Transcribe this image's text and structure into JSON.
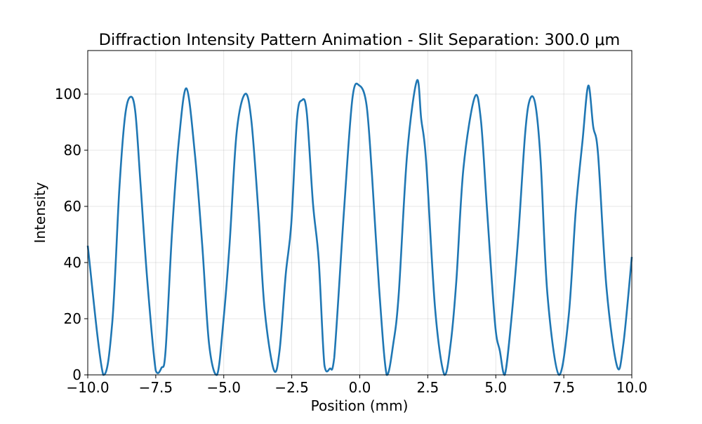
{
  "chart_data": {
    "type": "line",
    "title": "Diffraction Intensity Pattern Animation - Slit Separation: 300.0 μm",
    "xlabel": "Position (mm)",
    "ylabel": "Intensity",
    "xlim": [
      -10,
      10
    ],
    "ylim": [
      0,
      115.5
    ],
    "xticks": [
      -10,
      -7.5,
      -5,
      -2.5,
      0,
      2.5,
      5,
      7.5,
      10
    ],
    "xtick_labels": [
      "−10.0",
      "−7.5",
      "−5.0",
      "−2.5",
      "0.0",
      "2.5",
      "5.0",
      "7.5",
      "10.0"
    ],
    "yticks": [
      0,
      20,
      40,
      60,
      80,
      100
    ],
    "ytick_labels": [
      "0",
      "20",
      "40",
      "60",
      "80",
      "100"
    ],
    "grid": true,
    "line_color": "#1f77b4",
    "series": [
      {
        "x": [
          -10,
          -9.43,
          -9.1,
          -8.84,
          -8.63,
          -8.43,
          -8.25,
          -8.06,
          -7.81,
          -7.5,
          -7.29,
          -7.14,
          -6.9,
          -6.65,
          -6.37,
          -6.06,
          -5.79,
          -5.54,
          -5.25,
          -5.02,
          -4.79,
          -4.53,
          -4.22,
          -3.99,
          -3.73,
          -3.5,
          -3.16,
          -2.95,
          -2.72,
          -2.52,
          -2.31,
          -2.13,
          -1.95,
          -1.72,
          -1.51,
          -1.3,
          -1.1,
          -0.94,
          -0.58,
          -0.27,
          -0.01,
          0.25,
          0.45,
          0.71,
          0.99,
          1.23,
          1.43,
          1.74,
          2.1,
          2.26,
          2.44,
          2.77,
          3.11,
          3.34,
          3.55,
          3.81,
          4.22,
          4.45,
          4.68,
          4.97,
          5.15,
          5.33,
          5.56,
          5.82,
          6.08,
          6.26,
          6.46,
          6.65,
          6.9,
          7.32,
          7.68,
          7.94,
          8.19,
          8.4,
          8.58,
          8.76,
          9.07,
          9.46,
          9.69,
          10
        ],
        "y": [
          46,
          0,
          18.5,
          66,
          92,
          99,
          93.5,
          68,
          33.5,
          1.5,
          2.5,
          8.5,
          51,
          83.5,
          102,
          78.5,
          46,
          11,
          0,
          18.5,
          46,
          86,
          100,
          91,
          58.5,
          23.5,
          1.75,
          8.5,
          36,
          53.5,
          91,
          97.75,
          93.5,
          61,
          41,
          3.5,
          2.25,
          6,
          58.5,
          98.5,
          103,
          96,
          71,
          31,
          0,
          11,
          28.5,
          78.5,
          104.75,
          91,
          76,
          23.5,
          0,
          11,
          33.5,
          73.5,
          98.75,
          91,
          58.5,
          18.5,
          8.5,
          0,
          18.5,
          48.5,
          86,
          98.25,
          96,
          76,
          28.5,
          0,
          21,
          58.5,
          83.5,
          103,
          88.5,
          78.5,
          31,
          3,
          11,
          42
        ]
      }
    ]
  }
}
